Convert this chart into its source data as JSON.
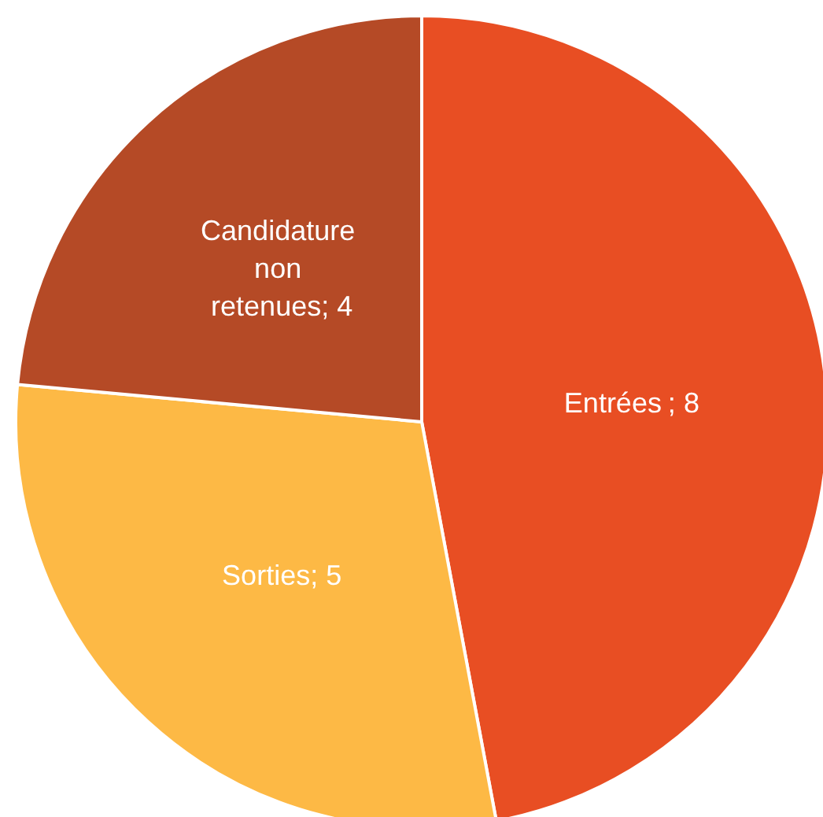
{
  "chart_data": {
    "type": "pie",
    "categories": [
      "Entrées",
      "Sorties",
      "Candidature non retenues"
    ],
    "values": [
      8,
      5,
      4
    ],
    "colors": [
      "#e84e23",
      "#fdb945",
      "#b54a26"
    ],
    "value_labels": [
      "; 8",
      "; 5",
      "; 4"
    ],
    "legend": false
  }
}
